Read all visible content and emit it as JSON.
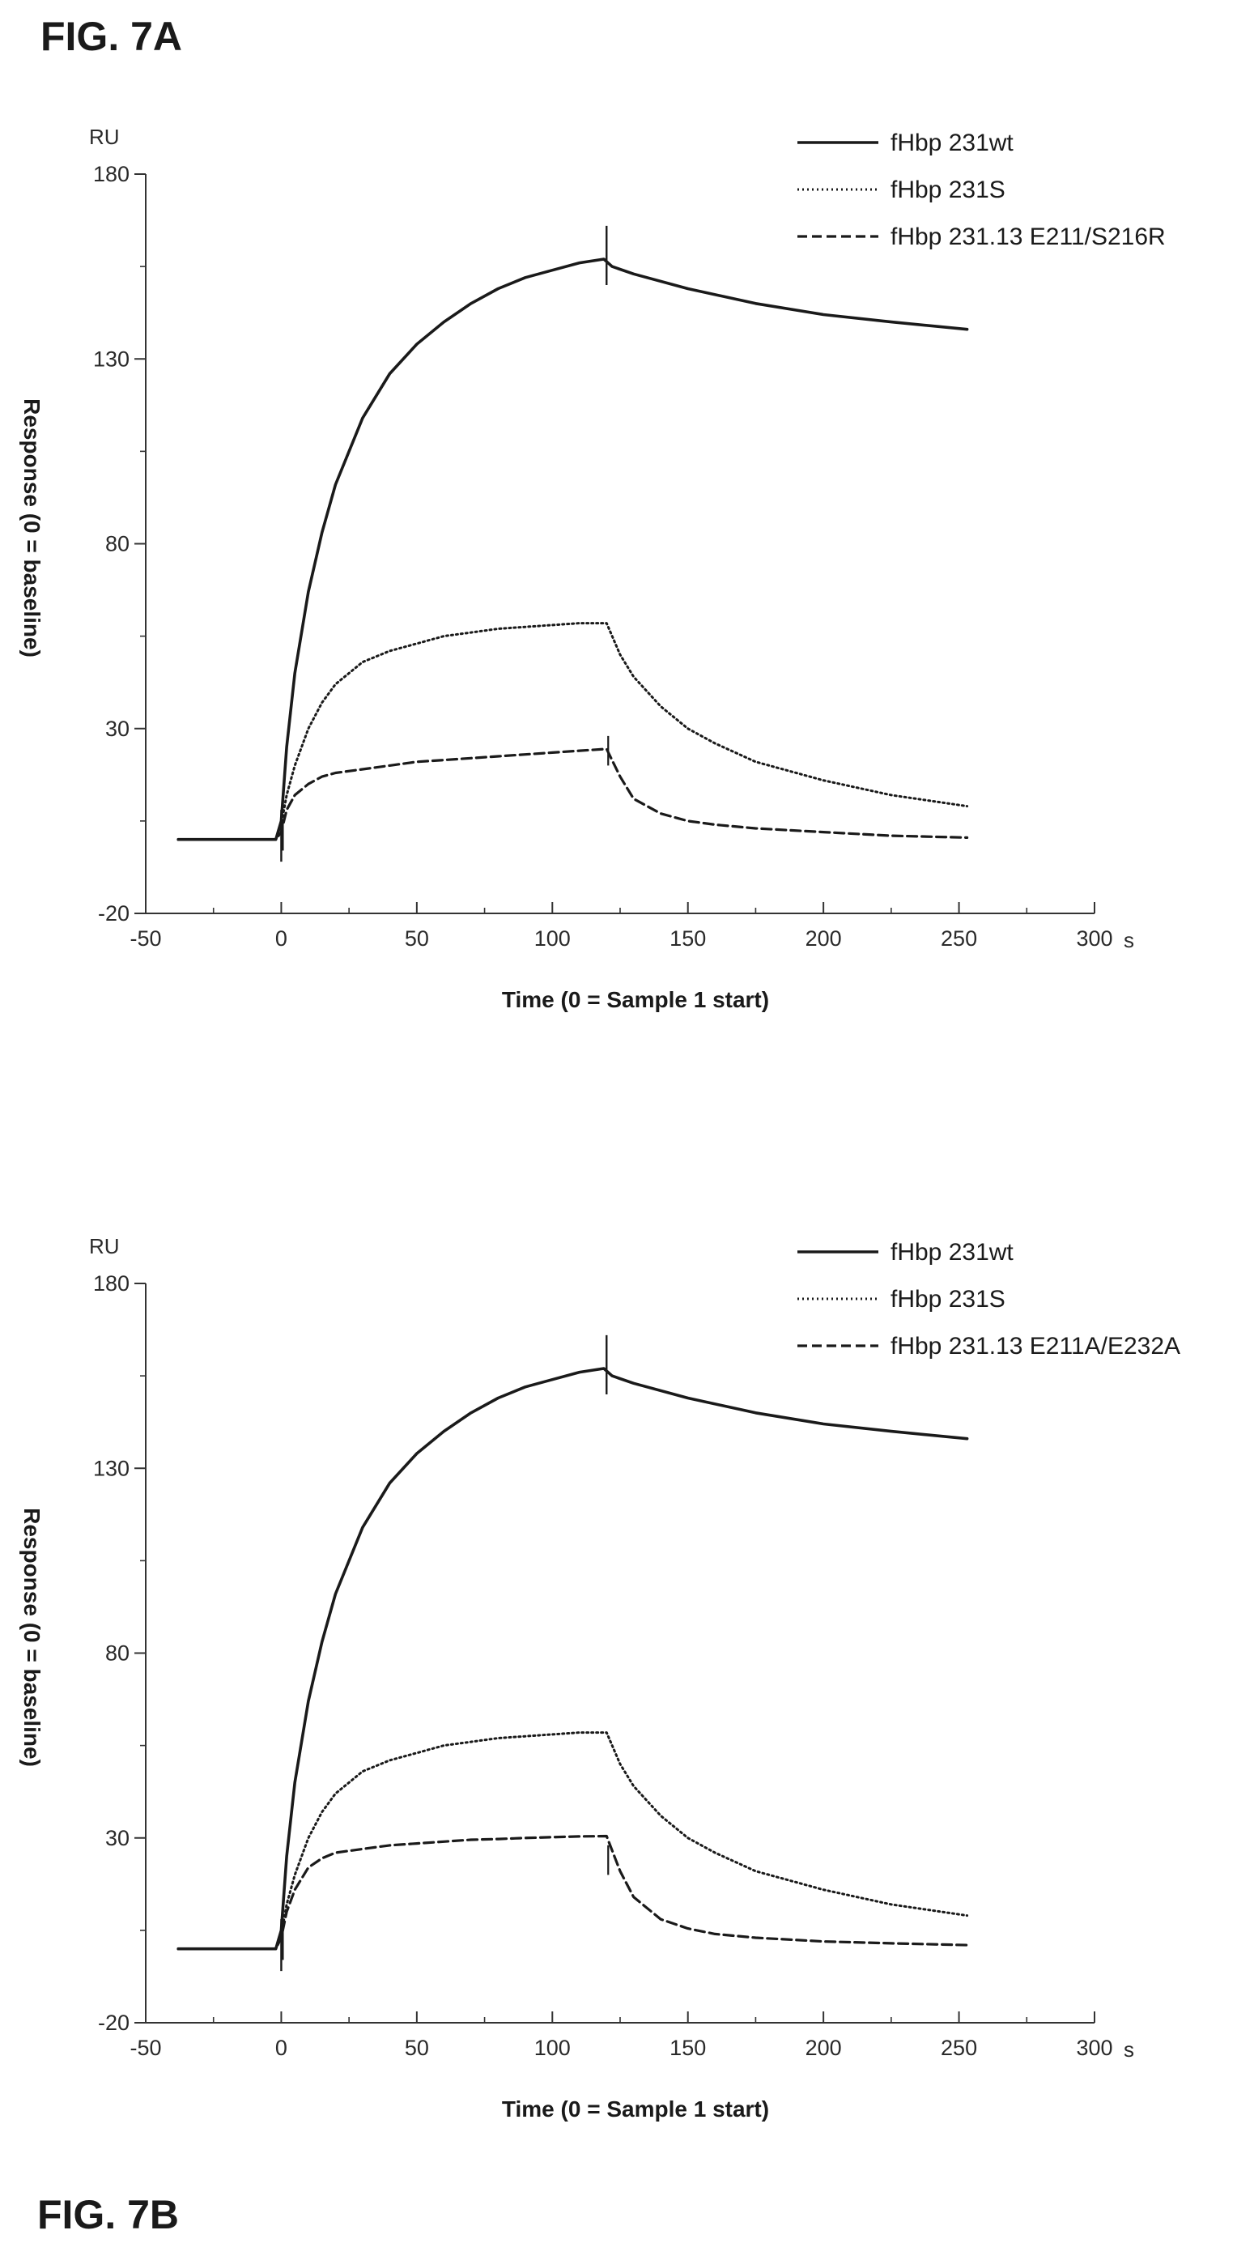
{
  "figures": {
    "a_label": "FIG. 7A",
    "b_label": "FIG. 7B"
  },
  "chart_data": [
    {
      "type": "line",
      "figure_label": "FIG. 7A",
      "xlabel": "Time (0 = Sample 1 start)",
      "ylabel": "Response (0 = baseline)",
      "x_unit": "s",
      "y_unit": "RU",
      "xlim": [
        -50,
        300
      ],
      "ylim": [
        -20,
        180
      ],
      "xticks": [
        -50,
        0,
        50,
        100,
        150,
        200,
        250,
        300
      ],
      "yticks": [
        -20,
        30,
        80,
        130,
        180
      ],
      "grid": false,
      "legend_position": "top-right",
      "series": [
        {
          "name": "fHbp 231wt",
          "style": "solid",
          "points": [
            [
              -38,
              0
            ],
            [
              -2,
              0
            ],
            [
              0,
              5
            ],
            [
              2,
              25
            ],
            [
              5,
              45
            ],
            [
              10,
              67
            ],
            [
              15,
              83
            ],
            [
              20,
              96
            ],
            [
              30,
              114
            ],
            [
              40,
              126
            ],
            [
              50,
              134
            ],
            [
              60,
              140
            ],
            [
              70,
              145
            ],
            [
              80,
              149
            ],
            [
              90,
              152
            ],
            [
              100,
              154
            ],
            [
              110,
              156
            ],
            [
              119,
              157
            ],
            [
              122,
              155
            ],
            [
              130,
              153
            ],
            [
              150,
              149
            ],
            [
              175,
              145
            ],
            [
              200,
              142
            ],
            [
              225,
              140
            ],
            [
              253,
              138
            ]
          ]
        },
        {
          "name": "fHbp 231S",
          "style": "dotted",
          "points": [
            [
              -38,
              0
            ],
            [
              -2,
              0
            ],
            [
              0,
              4
            ],
            [
              2,
              12
            ],
            [
              5,
              20
            ],
            [
              10,
              30
            ],
            [
              15,
              37
            ],
            [
              20,
              42
            ],
            [
              30,
              48
            ],
            [
              40,
              51
            ],
            [
              50,
              53
            ],
            [
              60,
              55
            ],
            [
              70,
              56
            ],
            [
              80,
              57
            ],
            [
              90,
              57.5
            ],
            [
              100,
              58
            ],
            [
              110,
              58.5
            ],
            [
              120,
              58.5
            ],
            [
              125,
              50
            ],
            [
              130,
              44
            ],
            [
              140,
              36
            ],
            [
              150,
              30
            ],
            [
              160,
              26
            ],
            [
              175,
              21
            ],
            [
              200,
              16
            ],
            [
              225,
              12
            ],
            [
              253,
              9
            ]
          ]
        },
        {
          "name": "fHbp 231.13 E211/S216R",
          "style": "dashed",
          "points": [
            [
              -38,
              0
            ],
            [
              -2,
              0
            ],
            [
              0,
              2
            ],
            [
              2,
              8
            ],
            [
              5,
              12
            ],
            [
              10,
              15
            ],
            [
              15,
              17
            ],
            [
              20,
              18
            ],
            [
              30,
              19
            ],
            [
              40,
              20
            ],
            [
              50,
              21
            ],
            [
              60,
              21.5
            ],
            [
              70,
              22
            ],
            [
              80,
              22.5
            ],
            [
              90,
              23
            ],
            [
              100,
              23.5
            ],
            [
              110,
              24
            ],
            [
              120,
              24.5
            ],
            [
              125,
              17
            ],
            [
              130,
              11
            ],
            [
              140,
              7
            ],
            [
              150,
              5
            ],
            [
              160,
              4
            ],
            [
              175,
              3
            ],
            [
              200,
              2
            ],
            [
              225,
              1
            ],
            [
              253,
              0.5
            ]
          ]
        }
      ]
    },
    {
      "type": "line",
      "figure_label": "FIG. 7B",
      "xlabel": "Time (0 = Sample 1 start)",
      "ylabel": "Response (0 = baseline)",
      "x_unit": "s",
      "y_unit": "RU",
      "xlim": [
        -50,
        300
      ],
      "ylim": [
        -20,
        180
      ],
      "xticks": [
        -50,
        0,
        50,
        100,
        150,
        200,
        250,
        300
      ],
      "yticks": [
        -20,
        30,
        80,
        130,
        180
      ],
      "grid": false,
      "legend_position": "top-right",
      "series": [
        {
          "name": "fHbp 231wt",
          "style": "solid",
          "points": [
            [
              -38,
              0
            ],
            [
              -2,
              0
            ],
            [
              0,
              5
            ],
            [
              2,
              25
            ],
            [
              5,
              45
            ],
            [
              10,
              67
            ],
            [
              15,
              83
            ],
            [
              20,
              96
            ],
            [
              30,
              114
            ],
            [
              40,
              126
            ],
            [
              50,
              134
            ],
            [
              60,
              140
            ],
            [
              70,
              145
            ],
            [
              80,
              149
            ],
            [
              90,
              152
            ],
            [
              100,
              154
            ],
            [
              110,
              156
            ],
            [
              119,
              157
            ],
            [
              122,
              155
            ],
            [
              130,
              153
            ],
            [
              150,
              149
            ],
            [
              175,
              145
            ],
            [
              200,
              142
            ],
            [
              225,
              140
            ],
            [
              253,
              138
            ]
          ]
        },
        {
          "name": "fHbp 231S",
          "style": "dotted",
          "points": [
            [
              -38,
              0
            ],
            [
              -2,
              0
            ],
            [
              0,
              4
            ],
            [
              2,
              12
            ],
            [
              5,
              20
            ],
            [
              10,
              30
            ],
            [
              15,
              37
            ],
            [
              20,
              42
            ],
            [
              30,
              48
            ],
            [
              40,
              51
            ],
            [
              50,
              53
            ],
            [
              60,
              55
            ],
            [
              70,
              56
            ],
            [
              80,
              57
            ],
            [
              90,
              57.5
            ],
            [
              100,
              58
            ],
            [
              110,
              58.5
            ],
            [
              120,
              58.5
            ],
            [
              125,
              50
            ],
            [
              130,
              44
            ],
            [
              140,
              36
            ],
            [
              150,
              30
            ],
            [
              160,
              26
            ],
            [
              175,
              21
            ],
            [
              200,
              16
            ],
            [
              225,
              12
            ],
            [
              253,
              9
            ]
          ]
        },
        {
          "name": "fHbp 231.13 E211A/E232A",
          "style": "dashed",
          "points": [
            [
              -38,
              0
            ],
            [
              -2,
              0
            ],
            [
              0,
              3
            ],
            [
              2,
              10
            ],
            [
              5,
              16
            ],
            [
              10,
              22
            ],
            [
              15,
              24.5
            ],
            [
              20,
              26
            ],
            [
              30,
              27
            ],
            [
              40,
              28
            ],
            [
              50,
              28.5
            ],
            [
              60,
              29
            ],
            [
              70,
              29.5
            ],
            [
              80,
              29.7
            ],
            [
              90,
              30
            ],
            [
              100,
              30.2
            ],
            [
              110,
              30.4
            ],
            [
              120,
              30.5
            ],
            [
              125,
              21
            ],
            [
              130,
              14
            ],
            [
              140,
              8
            ],
            [
              150,
              5.5
            ],
            [
              160,
              4
            ],
            [
              175,
              3
            ],
            [
              200,
              2
            ],
            [
              225,
              1.5
            ],
            [
              253,
              1
            ]
          ]
        }
      ]
    }
  ]
}
